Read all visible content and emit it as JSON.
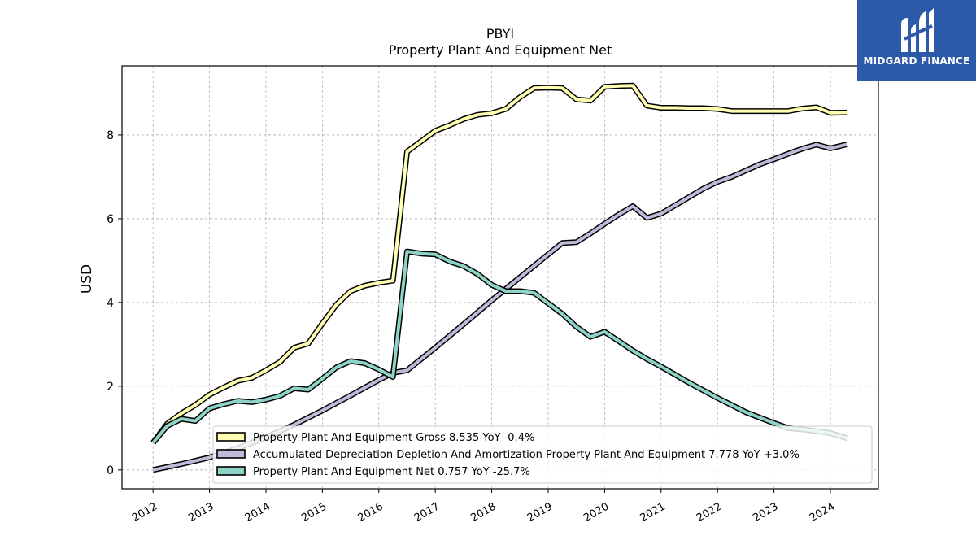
{
  "header": {
    "title": "PBYI",
    "subtitle": "Property Plant And Equipment Net"
  },
  "logo": {
    "text": "MIDGARD FINANCE",
    "icon": "midgard-logo-icon",
    "color": "#2c5aa8"
  },
  "chart_data": {
    "type": "line",
    "title": "PBYI",
    "subtitle": "Property Plant And Equipment Net",
    "ylabel": "USD",
    "xlabel": "",
    "ylim": [
      -0.45,
      9.65
    ],
    "xlim": [
      2011.45,
      2024.85
    ],
    "yticks": [
      0,
      2,
      4,
      6,
      8
    ],
    "xticks": [
      2012,
      2013,
      2014,
      2015,
      2016,
      2017,
      2018,
      2019,
      2020,
      2021,
      2022,
      2023,
      2024
    ],
    "grid": true,
    "legend_position": "lower-right",
    "series": [
      {
        "name": "Property Plant And Equipment Gross",
        "legend_label": "Property Plant And Equipment Gross  8.535 YoY -0.4%",
        "color": "#ffffb3",
        "x": [
          2012.0,
          2012.25,
          2012.5,
          2012.75,
          2013.0,
          2013.25,
          2013.5,
          2013.75,
          2014.0,
          2014.25,
          2014.5,
          2014.75,
          2015.0,
          2015.25,
          2015.5,
          2015.75,
          2016.0,
          2016.25,
          2016.5,
          2016.75,
          2017.0,
          2017.25,
          2017.5,
          2017.75,
          2018.0,
          2018.25,
          2018.5,
          2018.75,
          2019.0,
          2019.25,
          2019.5,
          2019.75,
          2020.0,
          2020.25,
          2020.5,
          2020.75,
          2021.0,
          2021.25,
          2021.5,
          2021.75,
          2022.0,
          2022.25,
          2022.5,
          2022.75,
          2023.0,
          2023.25,
          2023.5,
          2023.75,
          2024.0,
          2024.3
        ],
        "values": [
          0.65,
          1.1,
          1.35,
          1.55,
          1.8,
          1.97,
          2.13,
          2.2,
          2.38,
          2.58,
          2.92,
          3.02,
          3.5,
          3.95,
          4.27,
          4.4,
          4.47,
          4.52,
          7.6,
          7.85,
          8.1,
          8.23,
          8.38,
          8.48,
          8.52,
          8.62,
          8.9,
          9.12,
          9.13,
          9.12,
          8.85,
          8.82,
          9.15,
          9.17,
          9.18,
          8.7,
          8.65,
          8.65,
          8.64,
          8.64,
          8.62,
          8.57,
          8.57,
          8.57,
          8.57,
          8.57,
          8.63,
          8.66,
          8.53,
          8.535
        ]
      },
      {
        "name": "Accumulated Depreciation Depletion And Amortization Property Plant And Equipment",
        "legend_label": "Accumulated Depreciation Depletion And Amortization Property Plant And Equipment  7.778 YoY +3.0%",
        "color": "#bebada",
        "x": [
          2012.0,
          2012.5,
          2013.0,
          2013.5,
          2014.0,
          2014.5,
          2015.0,
          2015.5,
          2016.0,
          2016.25,
          2016.5,
          2017.0,
          2017.5,
          2018.0,
          2018.5,
          2019.0,
          2019.25,
          2019.5,
          2019.75,
          2020.0,
          2020.25,
          2020.5,
          2020.75,
          2021.0,
          2021.25,
          2021.5,
          2021.75,
          2022.0,
          2022.25,
          2022.5,
          2022.75,
          2023.0,
          2023.25,
          2023.5,
          2023.75,
          2024.0,
          2024.3
        ],
        "values": [
          0.0,
          0.14,
          0.3,
          0.52,
          0.78,
          1.08,
          1.42,
          1.78,
          2.15,
          2.32,
          2.38,
          2.92,
          3.48,
          4.05,
          4.6,
          5.15,
          5.42,
          5.44,
          5.65,
          5.88,
          6.1,
          6.3,
          6.02,
          6.12,
          6.32,
          6.52,
          6.72,
          6.88,
          7.0,
          7.15,
          7.3,
          7.42,
          7.55,
          7.67,
          7.77,
          7.68,
          7.778
        ]
      },
      {
        "name": "Property Plant And Equipment Net",
        "legend_label": "Property Plant And Equipment Net  0.757 YoY -25.7%",
        "color": "#8dd3c7",
        "x": [
          2012.0,
          2012.25,
          2012.5,
          2012.75,
          2013.0,
          2013.25,
          2013.5,
          2013.75,
          2014.0,
          2014.25,
          2014.5,
          2014.75,
          2015.0,
          2015.25,
          2015.5,
          2015.75,
          2016.0,
          2016.25,
          2016.5,
          2016.75,
          2017.0,
          2017.25,
          2017.5,
          2017.75,
          2018.0,
          2018.25,
          2018.5,
          2018.75,
          2019.0,
          2019.25,
          2019.5,
          2019.75,
          2020.0,
          2020.25,
          2020.5,
          2020.75,
          2021.0,
          2021.5,
          2022.0,
          2022.5,
          2023.0,
          2023.25,
          2023.5,
          2023.75,
          2024.0,
          2024.3
        ],
        "values": [
          0.65,
          1.05,
          1.22,
          1.17,
          1.47,
          1.57,
          1.65,
          1.62,
          1.68,
          1.77,
          1.95,
          1.92,
          2.18,
          2.45,
          2.6,
          2.55,
          2.4,
          2.22,
          5.22,
          5.17,
          5.15,
          4.98,
          4.87,
          4.68,
          4.42,
          4.27,
          4.27,
          4.23,
          3.98,
          3.73,
          3.42,
          3.18,
          3.3,
          3.08,
          2.85,
          2.65,
          2.47,
          2.08,
          1.72,
          1.38,
          1.12,
          1.0,
          0.97,
          0.93,
          0.88,
          0.757
        ]
      }
    ]
  }
}
